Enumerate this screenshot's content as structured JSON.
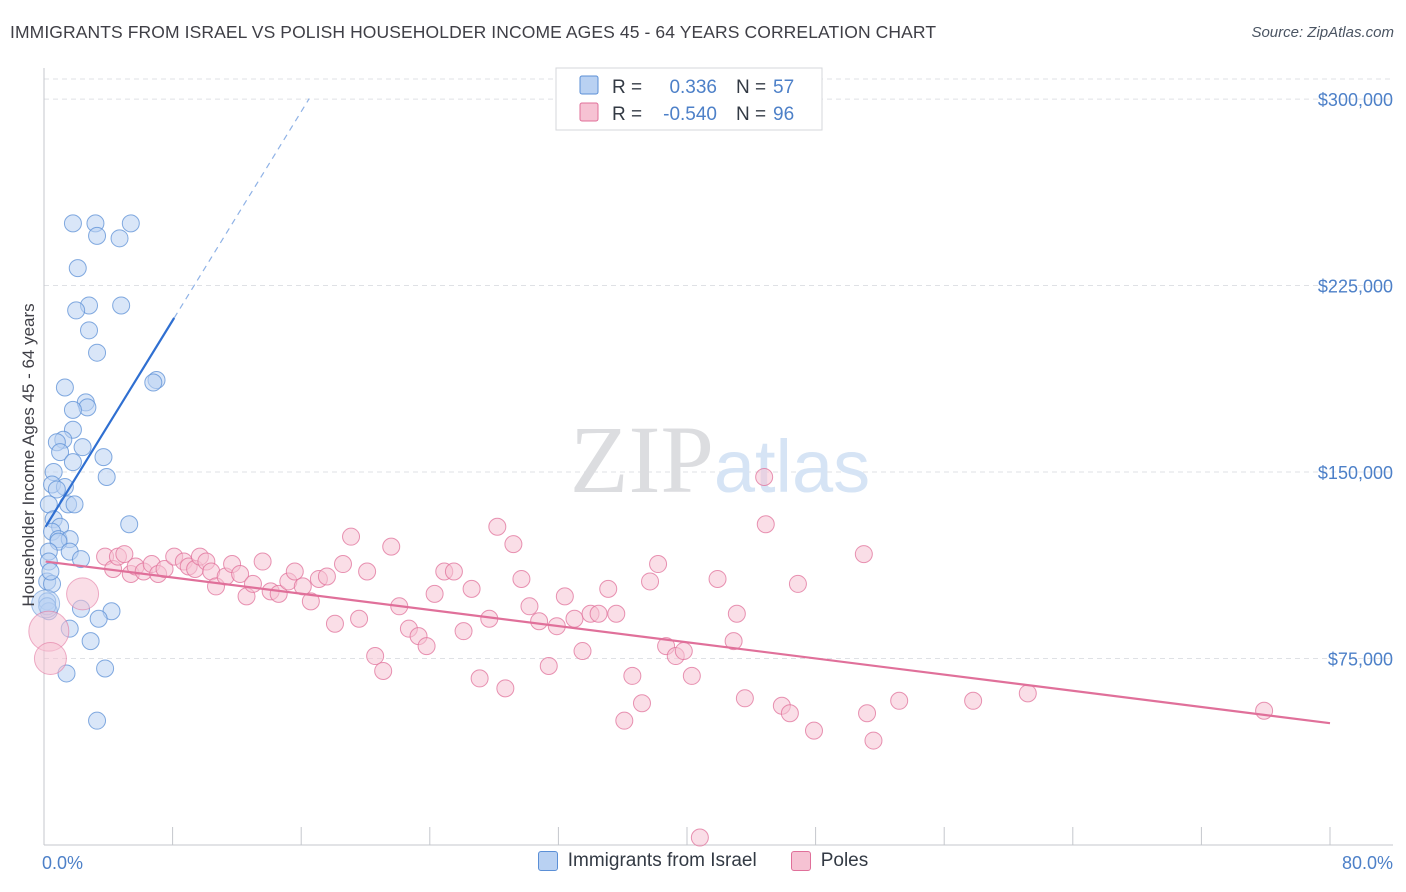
{
  "chart_data": {
    "type": "scatter",
    "title": "IMMIGRANTS FROM ISRAEL VS POLISH HOUSEHOLDER INCOME AGES 45 - 64 YEARS CORRELATION CHART",
    "source": "Source: ZipAtlas.com",
    "watermark": "ZIPatlas",
    "ylabel": "Householder Income Ages 45 - 64 years",
    "xlim": [
      0,
      80
    ],
    "ylim": [
      0,
      312500
    ],
    "x_ticks_labels": {
      "left": "0.0%",
      "right": "80.0%"
    },
    "y_ticks": [
      {
        "value": 75000,
        "label": "$75,000"
      },
      {
        "value": 150000,
        "label": "$150,000"
      },
      {
        "value": 225000,
        "label": "$225,000"
      },
      {
        "value": 300000,
        "label": "$300,000"
      }
    ],
    "legend_stats": [
      {
        "r_label": "R =",
        "r_value": "0.336",
        "n_label": "N =",
        "n_value": "57"
      },
      {
        "r_label": "R =",
        "r_value": "-0.540",
        "n_label": "N =",
        "n_value": "96"
      }
    ],
    "series": [
      {
        "name": "Immigrants from Israel",
        "color": "#5b8fd6",
        "fill": "#b9d1f2",
        "trend": {
          "x0": 0.1,
          "y0": 128000,
          "x1": 8.1,
          "y1": 212000,
          "dash_to_x": 16.5
        },
        "points": [
          [
            1.8,
            250000
          ],
          [
            3.2,
            250000
          ],
          [
            5.4,
            250000
          ],
          [
            3.3,
            245000
          ],
          [
            4.7,
            244000
          ],
          [
            2.1,
            232000
          ],
          [
            2.8,
            217000
          ],
          [
            4.8,
            217000
          ],
          [
            2.0,
            215000
          ],
          [
            2.8,
            207000
          ],
          [
            3.3,
            198000
          ],
          [
            7.0,
            187000
          ],
          [
            6.8,
            186000
          ],
          [
            1.3,
            184000
          ],
          [
            2.6,
            178000
          ],
          [
            2.7,
            176000
          ],
          [
            1.8,
            175000
          ],
          [
            1.8,
            167000
          ],
          [
            1.2,
            163000
          ],
          [
            0.8,
            162000
          ],
          [
            2.4,
            160000
          ],
          [
            1.0,
            158000
          ],
          [
            3.7,
            156000
          ],
          [
            1.8,
            154000
          ],
          [
            0.6,
            150000
          ],
          [
            3.9,
            148000
          ],
          [
            0.5,
            145000
          ],
          [
            1.3,
            144000
          ],
          [
            0.8,
            143000
          ],
          [
            1.5,
            137000
          ],
          [
            1.9,
            137000
          ],
          [
            0.3,
            137000
          ],
          [
            0.6,
            131000
          ],
          [
            5.3,
            129000
          ],
          [
            1.0,
            128000
          ],
          [
            0.5,
            126000
          ],
          [
            0.9,
            123000
          ],
          [
            1.6,
            123000
          ],
          [
            0.9,
            122000
          ],
          [
            1.6,
            118000
          ],
          [
            0.3,
            118000
          ],
          [
            2.3,
            115000
          ],
          [
            0.3,
            114000
          ],
          [
            0.2,
            106000
          ],
          [
            0.5,
            105000
          ],
          [
            0.2,
            98000
          ],
          [
            2.3,
            95000
          ],
          [
            4.2,
            94000
          ],
          [
            0.3,
            94000
          ],
          [
            3.4,
            91000
          ],
          [
            1.6,
            87000
          ],
          [
            2.9,
            82000
          ],
          [
            3.8,
            71000
          ],
          [
            1.4,
            69000
          ],
          [
            3.3,
            50000
          ],
          [
            0.2,
            96000
          ],
          [
            0.4,
            110000
          ]
        ],
        "big_points": [
          [
            0.1,
            97000,
            14
          ]
        ]
      },
      {
        "name": "Poles",
        "color": "#e0709a",
        "fill": "#f6c2d3",
        "trend": {
          "x0": 0.1,
          "y0": 114000,
          "x1": 80.0,
          "y1": 49000
        },
        "points": [
          [
            3.8,
            116000
          ],
          [
            4.3,
            111000
          ],
          [
            4.6,
            116000
          ],
          [
            5.0,
            117000
          ],
          [
            5.4,
            109000
          ],
          [
            5.7,
            112000
          ],
          [
            6.2,
            110000
          ],
          [
            6.7,
            113000
          ],
          [
            7.1,
            109000
          ],
          [
            7.5,
            111000
          ],
          [
            8.1,
            116000
          ],
          [
            8.7,
            114000
          ],
          [
            9.0,
            112000
          ],
          [
            9.4,
            111000
          ],
          [
            9.7,
            116000
          ],
          [
            10.1,
            114000
          ],
          [
            10.4,
            110000
          ],
          [
            10.7,
            104000
          ],
          [
            11.3,
            108000
          ],
          [
            11.7,
            113000
          ],
          [
            12.2,
            109000
          ],
          [
            12.6,
            100000
          ],
          [
            13.0,
            105000
          ],
          [
            13.6,
            114000
          ],
          [
            14.1,
            102000
          ],
          [
            14.6,
            101000
          ],
          [
            15.2,
            106000
          ],
          [
            15.6,
            110000
          ],
          [
            16.1,
            104000
          ],
          [
            16.6,
            98000
          ],
          [
            17.1,
            107000
          ],
          [
            17.6,
            108000
          ],
          [
            18.1,
            89000
          ],
          [
            18.6,
            113000
          ],
          [
            19.1,
            124000
          ],
          [
            19.6,
            91000
          ],
          [
            20.1,
            110000
          ],
          [
            20.6,
            76000
          ],
          [
            21.1,
            70000
          ],
          [
            21.6,
            120000
          ],
          [
            22.1,
            96000
          ],
          [
            22.7,
            87000
          ],
          [
            23.3,
            84000
          ],
          [
            23.8,
            80000
          ],
          [
            24.3,
            101000
          ],
          [
            24.9,
            110000
          ],
          [
            25.5,
            110000
          ],
          [
            26.1,
            86000
          ],
          [
            26.6,
            103000
          ],
          [
            27.1,
            67000
          ],
          [
            27.7,
            91000
          ],
          [
            28.2,
            128000
          ],
          [
            28.7,
            63000
          ],
          [
            29.2,
            121000
          ],
          [
            29.7,
            107000
          ],
          [
            30.2,
            96000
          ],
          [
            30.8,
            90000
          ],
          [
            31.4,
            72000
          ],
          [
            31.9,
            88000
          ],
          [
            32.4,
            100000
          ],
          [
            33.0,
            91000
          ],
          [
            33.5,
            78000
          ],
          [
            34.0,
            93000
          ],
          [
            34.5,
            93000
          ],
          [
            35.1,
            103000
          ],
          [
            35.6,
            93000
          ],
          [
            36.1,
            50000
          ],
          [
            36.6,
            68000
          ],
          [
            37.2,
            57000
          ],
          [
            37.7,
            106000
          ],
          [
            38.2,
            113000
          ],
          [
            38.7,
            80000
          ],
          [
            39.3,
            76000
          ],
          [
            39.8,
            78000
          ],
          [
            40.3,
            68000
          ],
          [
            40.8,
            3000
          ],
          [
            41.9,
            107000
          ],
          [
            42.9,
            82000
          ],
          [
            43.1,
            93000
          ],
          [
            43.6,
            59000
          ],
          [
            44.8,
            148000
          ],
          [
            44.9,
            129000
          ],
          [
            45.9,
            56000
          ],
          [
            46.4,
            53000
          ],
          [
            46.9,
            105000
          ],
          [
            47.9,
            46000
          ],
          [
            51.0,
            117000
          ],
          [
            51.2,
            53000
          ],
          [
            51.6,
            42000
          ],
          [
            53.2,
            58000
          ],
          [
            57.8,
            58000
          ],
          [
            61.2,
            61000
          ],
          [
            75.9,
            54000
          ]
        ],
        "big_points": [
          [
            0.3,
            86000,
            20
          ],
          [
            0.4,
            75000,
            16
          ],
          [
            2.4,
            101000,
            16
          ]
        ]
      }
    ]
  }
}
